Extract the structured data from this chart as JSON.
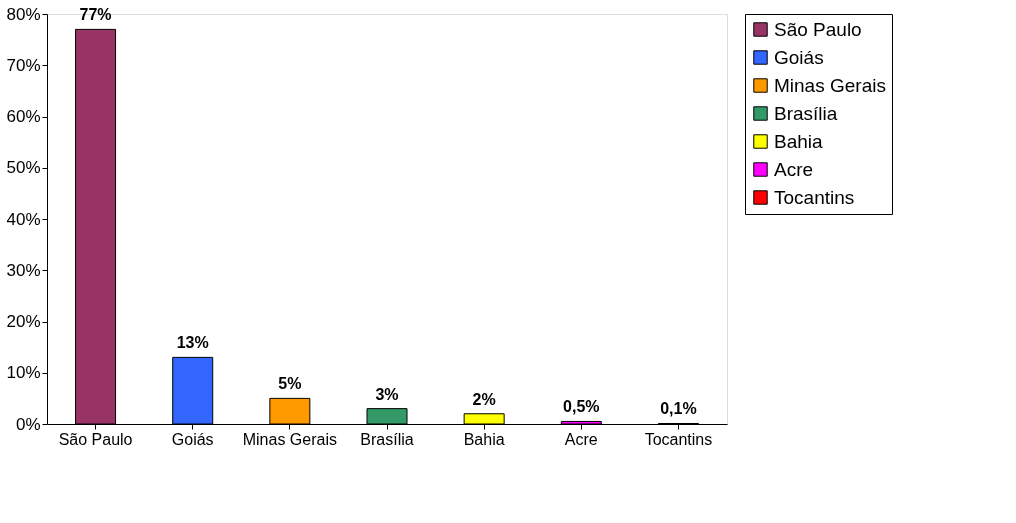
{
  "chart_data": {
    "type": "bar",
    "categories": [
      "São Paulo",
      "Goiás",
      "Minas Gerais",
      "Brasília",
      "Bahia",
      "Acre",
      "Tocantins"
    ],
    "series": [
      {
        "name": "São Paulo",
        "color": "#993366",
        "values": [
          77,
          null,
          null,
          null,
          null,
          null,
          null
        ],
        "value_labels": [
          "77%",
          null,
          null,
          null,
          null,
          null,
          null
        ]
      },
      {
        "name": "Goiás",
        "color": "#3366ff",
        "values": [
          null,
          13,
          null,
          null,
          null,
          null,
          null
        ],
        "value_labels": [
          null,
          "13%",
          null,
          null,
          null,
          null,
          null
        ]
      },
      {
        "name": "Minas Gerais",
        "color": "#ff9900",
        "values": [
          null,
          null,
          5,
          null,
          null,
          null,
          null
        ],
        "value_labels": [
          null,
          null,
          "5%",
          null,
          null,
          null,
          null
        ]
      },
      {
        "name": "Brasília",
        "color": "#339966",
        "values": [
          null,
          null,
          null,
          3,
          null,
          null,
          null
        ],
        "value_labels": [
          null,
          null,
          null,
          "3%",
          null,
          null,
          null
        ]
      },
      {
        "name": "Bahia",
        "color": "#ffff00",
        "values": [
          null,
          null,
          null,
          null,
          2,
          null,
          null
        ],
        "value_labels": [
          null,
          null,
          null,
          null,
          "2%",
          null,
          null
        ]
      },
      {
        "name": "Acre",
        "color": "#ff00ff",
        "values": [
          null,
          null,
          null,
          null,
          null,
          0.5,
          null
        ],
        "value_labels": [
          null,
          null,
          null,
          null,
          null,
          "0,5%",
          null
        ]
      },
      {
        "name": "Tocantins",
        "color": "#ff0000",
        "values": [
          null,
          null,
          null,
          null,
          null,
          null,
          0.1
        ],
        "value_labels": [
          null,
          null,
          null,
          null,
          null,
          null,
          "0,1%"
        ]
      }
    ],
    "ylim": [
      0,
      80
    ],
    "yticks": [
      {
        "value": 0,
        "label": "0%"
      },
      {
        "value": 10,
        "label": "10%"
      },
      {
        "value": 20,
        "label": "20%"
      },
      {
        "value": 30,
        "label": "30%"
      },
      {
        "value": 40,
        "label": "40%"
      },
      {
        "value": 50,
        "label": "50%"
      },
      {
        "value": 60,
        "label": "60%"
      },
      {
        "value": 70,
        "label": "70%"
      },
      {
        "value": 80,
        "label": "80%"
      }
    ],
    "grid": false,
    "legend": "right"
  }
}
